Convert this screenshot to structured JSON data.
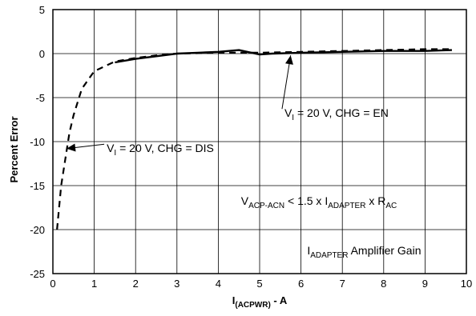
{
  "chart_data": {
    "type": "line",
    "xlabel": {
      "main": "I",
      "sub": "(ACPWR)",
      "suffix": " - A"
    },
    "ylabel": "Percent Error",
    "xlim": [
      0,
      10
    ],
    "ylim": [
      -25,
      5
    ],
    "x_ticks": [
      "0",
      "1",
      "2",
      "3",
      "4",
      "5",
      "6",
      "7",
      "8",
      "9",
      "10"
    ],
    "y_ticks": [
      "5",
      "0",
      "-5",
      "-10",
      "-15",
      "-20",
      "-25"
    ],
    "grid": true,
    "series": [
      {
        "style": "dashed",
        "x": [
          0.1,
          0.13,
          0.16,
          0.2,
          0.25,
          0.3,
          0.4,
          0.5,
          0.7,
          1.0,
          1.5,
          2.0,
          2.5,
          3.0,
          4.0,
          5.0,
          6.0,
          7.0,
          8.0,
          9.0,
          9.65
        ],
        "y": [
          -20.0,
          -18.5,
          -17.0,
          -15.0,
          -13.5,
          -12.0,
          -9.0,
          -7.0,
          -4.0,
          -2.0,
          -0.9,
          -0.5,
          -0.2,
          0.0,
          0.1,
          0.1,
          0.2,
          0.3,
          0.4,
          0.5,
          0.5
        ]
      },
      {
        "style": "solid",
        "x": [
          1.5,
          2.0,
          2.5,
          3.0,
          3.5,
          4.0,
          4.5,
          4.7,
          5.0,
          5.3,
          6.0,
          7.0,
          8.0,
          9.0,
          9.65
        ],
        "y": [
          -1.0,
          -0.6,
          -0.3,
          0.0,
          0.1,
          0.2,
          0.4,
          0.2,
          -0.1,
          0.0,
          0.1,
          0.2,
          0.3,
          0.3,
          0.4
        ]
      }
    ],
    "annotations": [
      {
        "pre": "V",
        "sub": "I",
        "post": " = 20 V, CHG = EN",
        "x": 5.6,
        "y": -7.2,
        "arrow_to": [
          5.75,
          -0.2
        ]
      },
      {
        "pre": "V",
        "sub": "I",
        "post": " = 20 V, CHG = DIS",
        "x": 1.3,
        "y": -11.2,
        "arrow_to": [
          0.33,
          -10.8
        ]
      }
    ],
    "formula": {
      "parts": [
        {
          "t": "V"
        },
        {
          "t": "ACP-ACN",
          "sub": true
        },
        {
          "t": " < 1.5 x I"
        },
        {
          "t": "ADAPTER",
          "sub": true
        },
        {
          "t": " x R"
        },
        {
          "t": "AC",
          "sub": true
        }
      ],
      "x": 4.55,
      "y": -17.2
    },
    "caption": {
      "parts": [
        {
          "t": "I"
        },
        {
          "t": "ADAPTER",
          "sub": true
        },
        {
          "t": " Amplifier Gain"
        }
      ],
      "x": 6.15,
      "y": -22.8
    }
  }
}
